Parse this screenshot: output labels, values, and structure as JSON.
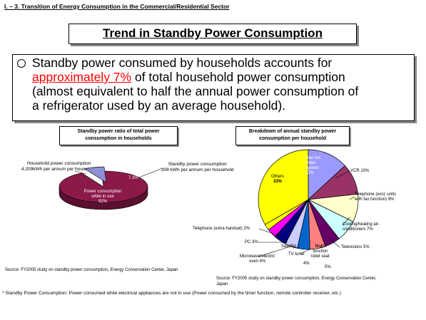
{
  "header": {
    "section_label": "I. – 3. Transition of Energy Consumption in the Commercial/Residential Sector",
    "title": "Trend in Standby Power Consumption"
  },
  "bullet": {
    "line1": "Standby power consumed by households accounts for",
    "highlight": "approximately 7%",
    "line2_rest": " of total household power consumption",
    "line3": "(almost equivalent to half the annual power consumption of",
    "line4": "a refrigerator used by an average household)."
  },
  "left_panel": {
    "title_line1": "Standby power ratio of total power",
    "title_line2": "consumption in households",
    "household_label_line1": "Household power consumption",
    "household_label_line2": "4,209kWh per annum per household",
    "standby_label_line1": "Standby power consumption",
    "standby_label_line2": "308 kWh per annum per household",
    "inuse_line1": "Power consumption",
    "inuse_line2": "while in use",
    "inuse_pct": "92%",
    "standby_pct": "7.3%",
    "source": "Source: FY2005 study on standby power consumption, Energy Conservation Center, Japan"
  },
  "right_panel": {
    "title_line1": "Breakdown of annual standby  power",
    "title_line2": "consumption per household",
    "others_label": "Others",
    "others_pct": "33%",
    "labels": {
      "gas": [
        "Gas hot",
        "water",
        "system",
        "13%"
      ],
      "vcr": "VCR 10%",
      "telephone": [
        "Telephone (excl. units",
        "with fax function) 9%"
      ],
      "cooling": [
        "Cooling/heating air-",
        "conditioners 7%"
      ],
      "tv": "Televisions 5%",
      "toilet": [
        "Multi-",
        "function",
        "toilet seat"
      ],
      "toilet_pct": "5%",
      "tvtuner": "TV tuner",
      "tvtuner_pct": "4%",
      "satellite": "Satellite",
      "microwave": [
        "Microwave/electric",
        "oven 4%"
      ],
      "pc": "PC 3%",
      "telephone_ext": "Telephone (extra handset) 2%"
    },
    "source_line1": "Source: FY2005 study on standby power consumption, Energy Conservation Center,",
    "source_line2": "Japan"
  },
  "footnote": "* Standby Power Consumption: Power consumed while electrical appliances are not in use (Power consumed by the timer function, remote controller receiver, etc.)",
  "chart_data": [
    {
      "type": "pie",
      "title": "Standby power ratio of total power consumption in households",
      "categories": [
        "Power consumption while in use",
        "Standby power consumption"
      ],
      "values": [
        92,
        7.3
      ],
      "colors": [
        "#8b1a4a",
        "#8f8fd6"
      ]
    },
    {
      "type": "pie",
      "title": "Breakdown of annual standby power consumption per household",
      "categories": [
        "Gas hot water system",
        "VCR",
        "Telephone (excl. units with fax function)",
        "Cooling/heating air-conditioners",
        "Televisions",
        "Multi-function toilet seat",
        "TV tuner",
        "Satellite",
        "Microwave/electric oven",
        "PC",
        "Telephone (extra handset)",
        "Others"
      ],
      "values": [
        13,
        10,
        9,
        7,
        5,
        5,
        4,
        4,
        4,
        3,
        2,
        33
      ],
      "colors": [
        "#9999ff",
        "#993366",
        "#ffffcc",
        "#ccffff",
        "#660066",
        "#ff8080",
        "#0066cc",
        "#ccccff",
        "#000080",
        "#ff00ff",
        "#ffff00",
        "#ffff00"
      ]
    }
  ]
}
